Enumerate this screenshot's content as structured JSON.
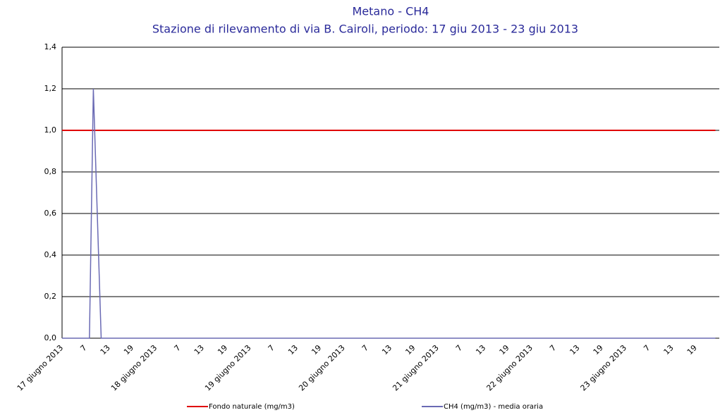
{
  "chart_data": {
    "type": "line",
    "title": "Metano - CH4",
    "subtitle": "Stazione di rilevamento di via B. Cairoli, periodo: 17 giu 2013 - 23 giu 2013",
    "categories": [
      "17 giugno 2013",
      null,
      null,
      null,
      null,
      null,
      "7",
      null,
      null,
      null,
      null,
      null,
      "13",
      null,
      null,
      null,
      null,
      null,
      "19",
      null,
      null,
      null,
      null,
      null,
      "18 giugno 2013",
      null,
      null,
      null,
      null,
      null,
      "7",
      null,
      null,
      null,
      null,
      null,
      "13",
      null,
      null,
      null,
      null,
      null,
      "19",
      null,
      null,
      null,
      null,
      null,
      "19 giugno 2013",
      null,
      null,
      null,
      null,
      null,
      "7",
      null,
      null,
      null,
      null,
      null,
      "13",
      null,
      null,
      null,
      null,
      null,
      "19",
      null,
      null,
      null,
      null,
      null,
      "20 giugno 2013",
      null,
      null,
      null,
      null,
      null,
      "7",
      null,
      null,
      null,
      null,
      null,
      "13",
      null,
      null,
      null,
      null,
      null,
      "19",
      null,
      null,
      null,
      null,
      null,
      "21 giugno 2013",
      null,
      null,
      null,
      null,
      null,
      "7",
      null,
      null,
      null,
      null,
      null,
      "13",
      null,
      null,
      null,
      null,
      null,
      "19",
      null,
      null,
      null,
      null,
      null,
      "22 giugno 2013",
      null,
      null,
      null,
      null,
      null,
      "7",
      null,
      null,
      null,
      null,
      null,
      "13",
      null,
      null,
      null,
      null,
      null,
      "19",
      null,
      null,
      null,
      null,
      null,
      "23 giugno 2013",
      null,
      null,
      null,
      null,
      null,
      "7",
      null,
      null,
      null,
      null,
      null,
      "13",
      null,
      null,
      null,
      null,
      null,
      "19",
      null,
      null,
      null,
      null,
      null
    ],
    "series": [
      {
        "name": "Fondo naturale  (mg/m3)",
        "color": "#e00000",
        "values": [
          1,
          1,
          1,
          1,
          1,
          1,
          1,
          1,
          1,
          1,
          1,
          1,
          1,
          1,
          1,
          1,
          1,
          1,
          1,
          1,
          1,
          1,
          1,
          1,
          1,
          1,
          1,
          1,
          1,
          1,
          1,
          1,
          1,
          1,
          1,
          1,
          1,
          1,
          1,
          1,
          1,
          1,
          1,
          1,
          1,
          1,
          1,
          1,
          1,
          1,
          1,
          1,
          1,
          1,
          1,
          1,
          1,
          1,
          1,
          1,
          1,
          1,
          1,
          1,
          1,
          1,
          1,
          1,
          1,
          1,
          1,
          1,
          1,
          1,
          1,
          1,
          1,
          1,
          1,
          1,
          1,
          1,
          1,
          1,
          1,
          1,
          1,
          1,
          1,
          1,
          1,
          1,
          1,
          1,
          1,
          1,
          1,
          1,
          1,
          1,
          1,
          1,
          1,
          1,
          1,
          1,
          1,
          1,
          1,
          1,
          1,
          1,
          1,
          1,
          1,
          1,
          1,
          1,
          1,
          1,
          1,
          1,
          1,
          1,
          1,
          1,
          1,
          1,
          1,
          1,
          1,
          1,
          1,
          1,
          1,
          1,
          1,
          1,
          1,
          1,
          1,
          1,
          1,
          1,
          1,
          1,
          1,
          1,
          1,
          1,
          1,
          1,
          1,
          1,
          1,
          1,
          1,
          1,
          1,
          1,
          1,
          1,
          1,
          1,
          1,
          1,
          1,
          1
        ]
      },
      {
        "name": "CH4 (mg/m3)  - media oraria",
        "color": "#6a6ab4",
        "values": [
          0,
          0,
          0,
          0,
          0,
          0,
          0,
          0,
          1.2,
          0.6,
          0,
          0,
          0,
          0,
          0,
          0,
          0,
          0,
          0,
          0,
          0,
          0,
          0,
          0,
          0,
          0,
          0,
          0,
          0,
          0,
          0,
          0,
          0,
          0,
          0,
          0,
          0,
          0,
          0,
          0,
          0,
          0,
          0,
          0,
          0,
          0,
          0,
          0,
          0,
          0,
          0,
          0,
          0,
          0,
          0,
          0,
          0,
          0,
          0,
          0,
          0,
          0,
          0,
          0,
          0,
          0,
          0,
          0,
          0,
          0,
          0,
          0,
          0,
          0,
          0,
          0,
          0,
          0,
          0,
          0,
          0,
          0,
          0,
          0,
          0,
          0,
          0,
          0,
          0,
          0,
          0,
          0,
          0,
          0,
          0,
          0,
          0,
          0,
          0,
          0,
          0,
          0,
          0,
          0,
          0,
          0,
          0,
          0,
          0,
          0,
          0,
          0,
          0,
          0,
          0,
          0,
          0,
          0,
          0,
          0,
          0,
          0,
          0,
          0,
          0,
          0,
          0,
          0,
          0,
          0,
          0,
          0,
          0,
          0,
          0,
          0,
          0,
          0,
          0,
          0,
          0,
          0,
          0,
          0,
          0,
          0,
          0,
          0,
          0,
          0,
          0,
          0,
          0,
          0,
          0,
          0,
          0,
          0,
          0,
          0,
          0,
          0,
          0,
          0,
          0,
          0,
          0,
          0
        ]
      }
    ],
    "ylim": [
      0,
      1.4
    ],
    "yticks": [
      {
        "value": 0,
        "label": "0,0"
      },
      {
        "value": 0.2,
        "label": "0,2"
      },
      {
        "value": 0.4,
        "label": "0,4"
      },
      {
        "value": 0.6,
        "label": "0,6"
      },
      {
        "value": 0.8,
        "label": "0,8"
      },
      {
        "value": 1,
        "label": "1,0"
      },
      {
        "value": 1.2,
        "label": "1,2"
      },
      {
        "value": 1.4,
        "label": "1,4"
      }
    ],
    "grid": true
  }
}
